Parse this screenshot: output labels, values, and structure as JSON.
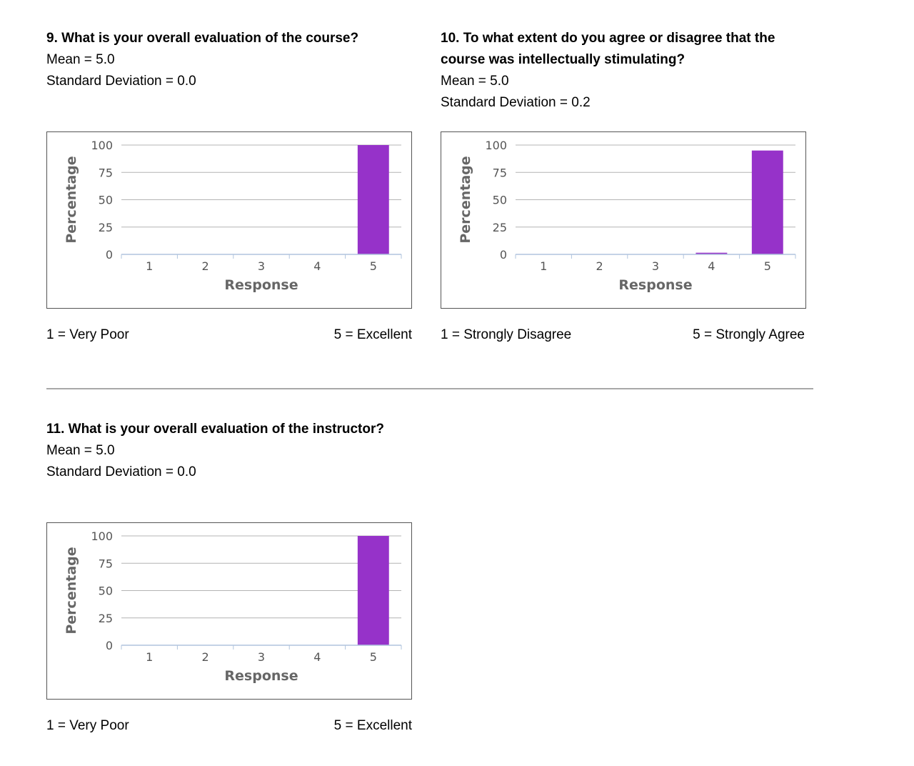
{
  "colors": {
    "bar": "#9632c9",
    "grid": "#b4b4b4",
    "axis": "#b0c4de",
    "text": "#555555"
  },
  "questions": [
    {
      "title_lines": [
        "9. What is your overall evaluation of the course?"
      ],
      "mean": "Mean = 5.0",
      "sd": "Standard Deviation = 0.0",
      "scale_left": "1 = Very Poor",
      "scale_right": "5 = Excellent"
    },
    {
      "title_lines": [
        "10. To what extent do you agree or disagree that the",
        "course was intellectually stimulating?"
      ],
      "mean": "Mean = 5.0",
      "sd": "Standard Deviation = 0.2",
      "scale_left": "1 = Strongly Disagree",
      "scale_right": "5 = Strongly Agree"
    },
    {
      "title_lines": [
        "11. What is your overall evaluation of the instructor?"
      ],
      "mean": "Mean = 5.0",
      "sd": "Standard Deviation = 0.0",
      "scale_left": "1 = Very Poor",
      "scale_right": "5 = Excellent"
    }
  ],
  "chart_data": [
    {
      "type": "bar",
      "categories": [
        "1",
        "2",
        "3",
        "4",
        "5"
      ],
      "values": [
        0,
        0,
        0,
        0,
        100
      ],
      "xlabel": "Response",
      "ylabel": "Percentage",
      "ylim": [
        0,
        100
      ],
      "yticks": [
        "0",
        "25",
        "50",
        "75",
        "100"
      ],
      "grid": true
    },
    {
      "type": "bar",
      "categories": [
        "1",
        "2",
        "3",
        "4",
        "5"
      ],
      "values": [
        0,
        0,
        0,
        1.5,
        95
      ],
      "xlabel": "Response",
      "ylabel": "Percentage",
      "ylim": [
        0,
        100
      ],
      "yticks": [
        "0",
        "25",
        "50",
        "75",
        "100"
      ],
      "grid": true
    },
    {
      "type": "bar",
      "categories": [
        "1",
        "2",
        "3",
        "4",
        "5"
      ],
      "values": [
        0,
        0,
        0,
        0,
        100
      ],
      "xlabel": "Response",
      "ylabel": "Percentage",
      "ylim": [
        0,
        100
      ],
      "yticks": [
        "0",
        "25",
        "50",
        "75",
        "100"
      ],
      "grid": true
    }
  ]
}
